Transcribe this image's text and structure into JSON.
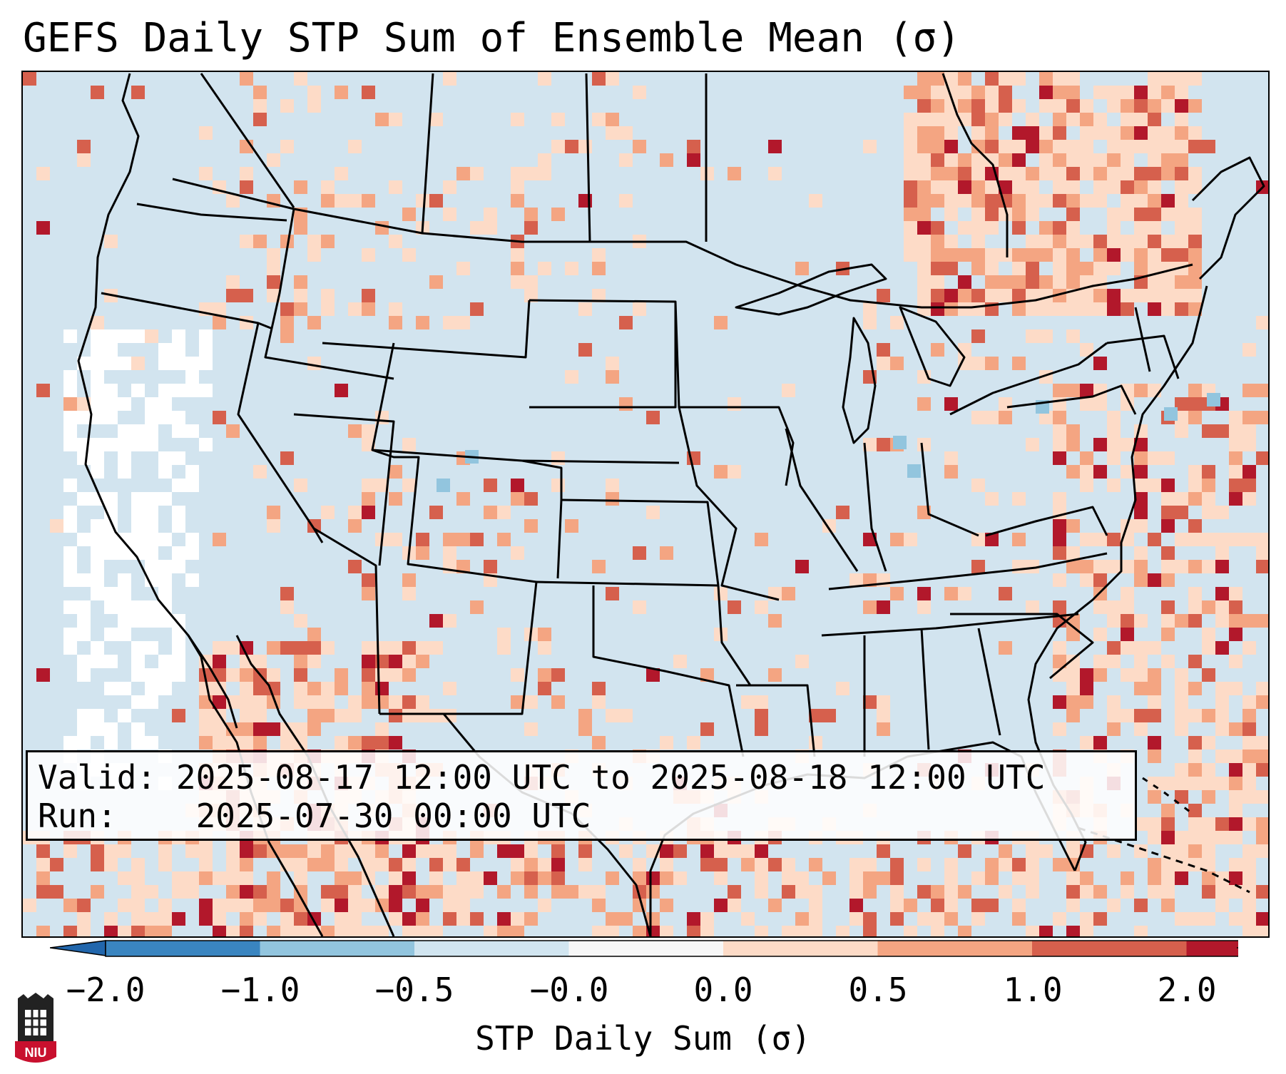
{
  "title": "GEFS Daily STP Sum of Ensemble Mean (σ)",
  "info": {
    "valid_label": "Valid:",
    "valid_value": "2025-08-17 12:00 UTC to 2025-08-18 12:00 UTC",
    "run_label": "Run:",
    "run_value": "2025-07-30 00:00 UTC"
  },
  "colorbar": {
    "label": "STP Daily Sum (σ)",
    "ticks": [
      "−2.0",
      "−1.0",
      "−0.5",
      "−0.0",
      "0.0",
      "0.5",
      "1.0",
      "2.0"
    ],
    "colors": [
      "#3a85c0",
      "#92c5de",
      "#d1e5f0",
      "#f7f7f7",
      "#fddbc7",
      "#f4a582",
      "#d6604d",
      "#b2182b"
    ],
    "under_color": "#2166ac",
    "over_color": "#b2182b"
  },
  "map_colors": {
    "background": "#d2e4ef",
    "light_pink": "#fddbc7",
    "salmon": "#f4a582",
    "red": "#d6604d",
    "dark_red": "#b2182b",
    "white": "#ffffff",
    "light_blue": "#92c5de",
    "borders": "#000000"
  },
  "logo": {
    "text": "NIU",
    "color": "#c8102e"
  }
}
